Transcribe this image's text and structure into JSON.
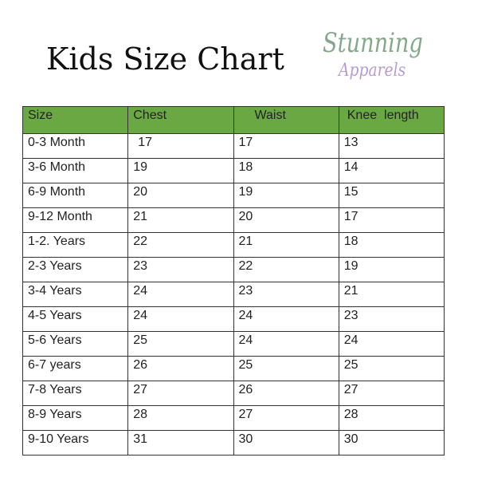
{
  "title": "Kids Size Chart",
  "logo": {
    "line1": "Stunning",
    "line2": "Apparels"
  },
  "colors": {
    "header_bg": "#6aa843",
    "logo_green": "#86a88a",
    "logo_purple": "#b89ccf"
  },
  "table": {
    "headers": [
      "Size",
      "Chest",
      "Waist",
      "Knee  length"
    ],
    "rows": [
      [
        "0-3 Month",
        "17",
        "17",
        "13"
      ],
      [
        "3-6 Month",
        "19",
        "18",
        "14"
      ],
      [
        "6-9 Month",
        "20",
        "19",
        "15"
      ],
      [
        "9-12 Month",
        "21",
        "20",
        "17"
      ],
      [
        "1-2. Years",
        "22",
        "21",
        "18"
      ],
      [
        "2-3 Years",
        "23",
        "22",
        "19"
      ],
      [
        "3-4 Years",
        "24",
        "23",
        "21"
      ],
      [
        "4-5 Years",
        "24",
        "24",
        "23"
      ],
      [
        "5-6 Years",
        "25",
        "24",
        "24"
      ],
      [
        "6-7 years",
        "26",
        "25",
        "25"
      ],
      [
        "7-8 Years",
        "27",
        "26",
        "27"
      ],
      [
        "8-9 Years",
        "28",
        "27",
        "28"
      ],
      [
        "9-10 Years",
        "31",
        "30",
        "30"
      ]
    ]
  }
}
